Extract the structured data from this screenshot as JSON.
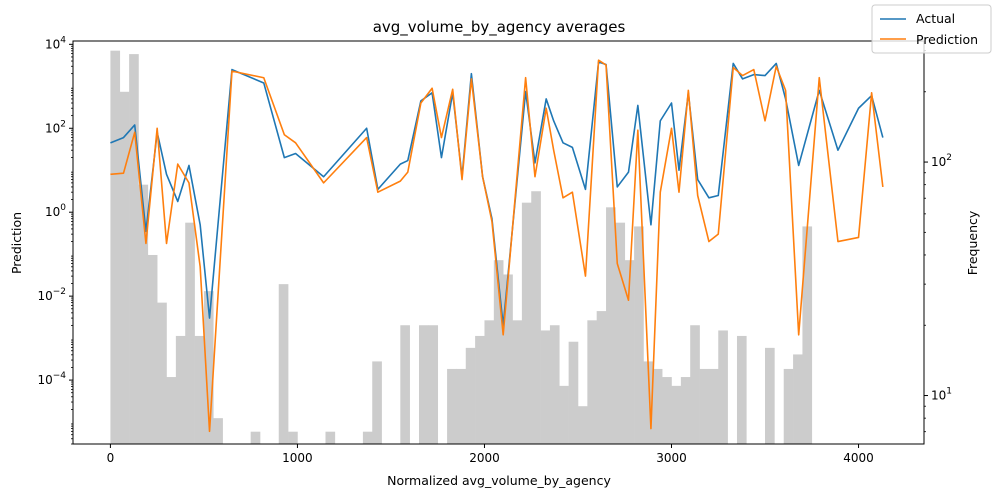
{
  "chart_data": {
    "type": "line",
    "title": "avg_volume_by_agency averages",
    "xlabel": "Normalized avg_volume_by_agency",
    "ylabel": "Prediction",
    "y2label": "Frequency",
    "xlim": [
      -200,
      4350
    ],
    "ylim": [
      3e-06,
      12000
    ],
    "yscale": "log",
    "y2lim": [
      6.2,
      330
    ],
    "y2scale": "log",
    "xticks": [
      0,
      1000,
      2000,
      3000,
      4000
    ],
    "yticks": [
      {
        "value": 0.0001,
        "base": "10",
        "exp": "−4"
      },
      {
        "value": 0.01,
        "base": "10",
        "exp": "−2"
      },
      {
        "value": 1,
        "base": "10",
        "exp": "0"
      },
      {
        "value": 100,
        "base": "10",
        "exp": "2"
      },
      {
        "value": 10000,
        "base": "10",
        "exp": "4"
      }
    ],
    "y2ticks": [
      {
        "value": 10,
        "base": "10",
        "exp": "1"
      },
      {
        "value": 100,
        "base": "10",
        "exp": "2"
      }
    ],
    "legend": {
      "position": "top-right",
      "entries": [
        "Actual",
        "Prediction"
      ]
    },
    "colors": {
      "Actual": "#1f77b4",
      "Prediction": "#ff7f0e",
      "histogram": "#cccccc"
    },
    "series": [
      {
        "name": "Actual",
        "x": [
          0,
          70,
          130,
          190,
          250,
          300,
          360,
          420,
          480,
          530,
          650,
          820,
          930,
          990,
          1140,
          1370,
          1430,
          1550,
          1590,
          1660,
          1720,
          1770,
          1830,
          1880,
          1930,
          1990,
          2040,
          2100,
          2220,
          2270,
          2330,
          2370,
          2420,
          2470,
          2540,
          2610,
          2650,
          2710,
          2770,
          2820,
          2890,
          2940,
          3000,
          3040,
          3090,
          3140,
          3200,
          3250,
          3330,
          3380,
          3440,
          3500,
          3560,
          3610,
          3680,
          3790,
          3890,
          4000,
          4070,
          4130
        ],
        "y": [
          45,
          60,
          120,
          0.35,
          80,
          8,
          1.8,
          13,
          0.5,
          0.003,
          2500,
          1200,
          20,
          25,
          7,
          100,
          3.5,
          14,
          17,
          450,
          700,
          20,
          700,
          7,
          2000,
          7,
          0.7,
          0.002,
          750,
          15,
          500,
          150,
          45,
          35,
          3.5,
          3800,
          3300,
          4,
          9,
          350,
          0.5,
          150,
          400,
          10,
          700,
          6,
          2.2,
          2.5,
          3500,
          1500,
          1900,
          1800,
          3500,
          500,
          13,
          800,
          30,
          300,
          600,
          60
        ]
      },
      {
        "name": "Prediction",
        "x": [
          0,
          70,
          130,
          190,
          250,
          300,
          360,
          420,
          480,
          530,
          650,
          820,
          930,
          990,
          1140,
          1370,
          1430,
          1550,
          1590,
          1660,
          1720,
          1770,
          1830,
          1880,
          1930,
          1990,
          2040,
          2100,
          2220,
          2270,
          2330,
          2370,
          2420,
          2470,
          2540,
          2610,
          2650,
          2710,
          2770,
          2820,
          2890,
          2940,
          3000,
          3040,
          3090,
          3140,
          3200,
          3250,
          3330,
          3380,
          3440,
          3500,
          3560,
          3610,
          3680,
          3790,
          3890,
          4000,
          4070,
          4130
        ],
        "y": [
          8,
          8.5,
          80,
          0.18,
          100,
          0.18,
          14,
          5,
          0.05,
          6e-06,
          2300,
          1600,
          70,
          45,
          5,
          60,
          3,
          5.5,
          9,
          400,
          900,
          60,
          850,
          6,
          1500,
          7,
          0.6,
          0.0012,
          1600,
          7,
          300,
          30,
          2.2,
          3,
          0.03,
          4200,
          3200,
          0.06,
          0.008,
          90,
          7e-06,
          3,
          100,
          3,
          800,
          2.5,
          0.2,
          0.3,
          2800,
          1800,
          2500,
          150,
          3000,
          800,
          0.0012,
          1600,
          0.2,
          0.25,
          700,
          4
        ]
      }
    ],
    "histogram": {
      "bin_start": 0,
      "bin_width": 50,
      "counts": [
        300,
        200,
        290,
        80,
        40,
        25,
        12,
        18,
        55,
        18,
        28,
        8,
        0,
        0,
        0,
        7,
        0,
        0,
        30,
        7,
        0,
        0,
        0,
        7,
        0,
        0,
        0,
        7,
        14,
        0,
        6,
        20,
        0,
        20,
        20,
        6,
        13,
        13,
        16,
        18,
        21,
        38,
        33,
        21,
        67,
        75,
        19,
        20,
        11,
        17,
        9,
        21,
        23,
        64,
        55,
        38,
        53,
        14,
        13,
        12,
        11,
        12,
        20,
        13,
        13,
        19,
        6,
        18,
        6,
        0,
        16,
        0,
        13,
        15,
        53
      ]
    }
  }
}
